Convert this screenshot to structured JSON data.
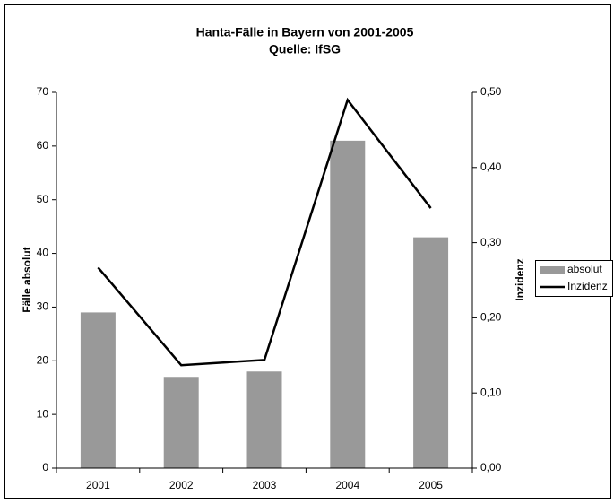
{
  "chart_data": {
    "type": "bar+line",
    "title": "Hanta-Fälle in Bayern von 2001-2005",
    "subtitle": "Quelle: IfSG",
    "y_label": "Fälle absolut",
    "y2_label": "Inzidenz",
    "categories": [
      "2001",
      "2002",
      "2003",
      "2004",
      "2005"
    ],
    "series": [
      {
        "name": "absolut",
        "type": "bar",
        "color": "#999999",
        "values": [
          29,
          17,
          18,
          61,
          43
        ]
      },
      {
        "name": "Inzidenz",
        "type": "line",
        "axis": "y2",
        "color": "#000000",
        "values": [
          0.267,
          0.137,
          0.144,
          0.49,
          0.346
        ]
      }
    ],
    "ylim": [
      0,
      70
    ],
    "yticks": [
      0,
      10,
      20,
      30,
      40,
      50,
      60,
      70
    ],
    "y2lim": [
      0,
      0.5
    ],
    "y2ticks": [
      {
        "value": 0,
        "label": "0,00"
      },
      {
        "value": 0.1,
        "label": "0,10"
      },
      {
        "value": 0.2,
        "label": "0,20"
      },
      {
        "value": 0.3,
        "label": "0,30"
      },
      {
        "value": 0.4,
        "label": "0,40"
      },
      {
        "value": 0.5,
        "label": "0,50"
      }
    ],
    "legend": "right",
    "grid": false
  }
}
